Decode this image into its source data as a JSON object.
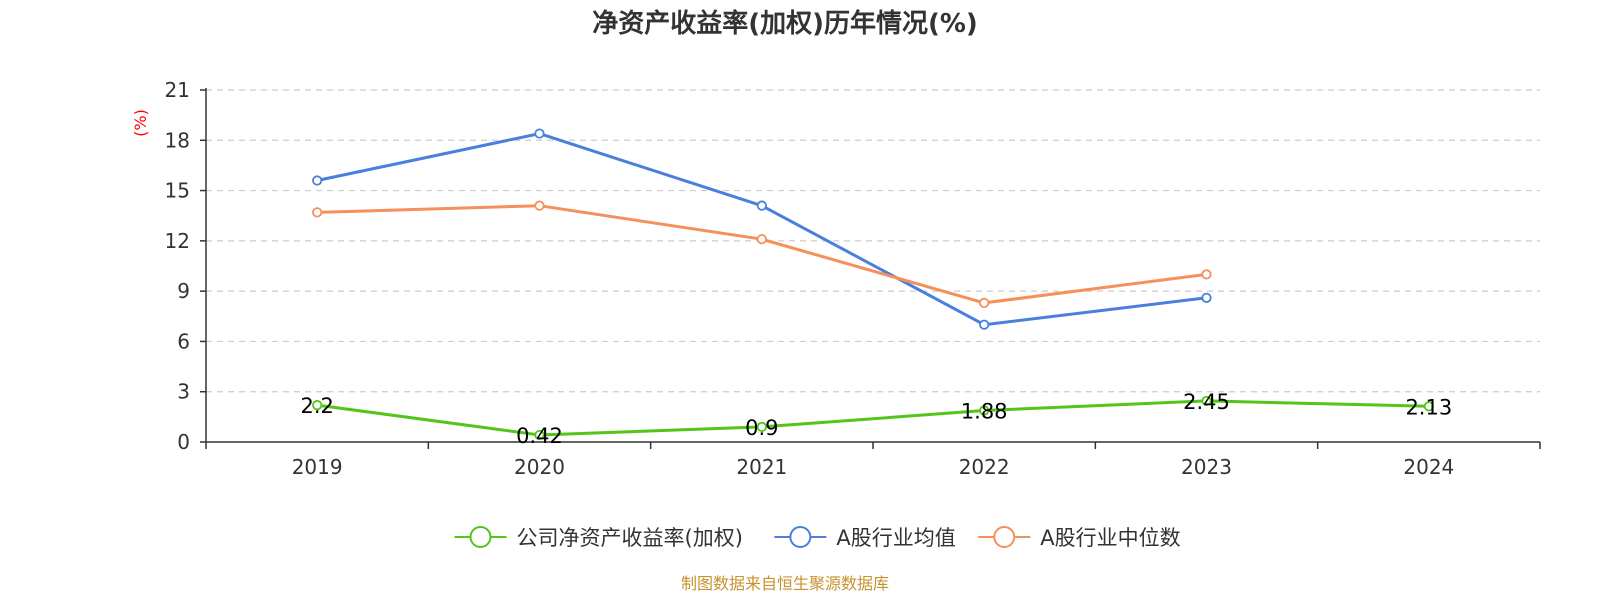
{
  "chart_data": {
    "type": "line",
    "title": "净资产收益率(加权)历年情况(%)",
    "ylabel": "(%)",
    "xlabel": "",
    "categories": [
      "2019",
      "2020",
      "2021",
      "2022",
      "2023",
      "2024"
    ],
    "ylim": [
      0,
      21
    ],
    "yticks": [
      0,
      3,
      6,
      9,
      12,
      15,
      18,
      21
    ],
    "grid": true,
    "legend_position": "bottom-center",
    "series": [
      {
        "name": "公司净资产收益率(加权)",
        "color": "#52c41a",
        "values": [
          2.2,
          0.42,
          0.9,
          1.88,
          2.45,
          2.13
        ],
        "labels": [
          "2.2",
          "0.42",
          "0.9",
          "1.88",
          "2.45",
          "2.13"
        ],
        "show_labels": true
      },
      {
        "name": "A股行业均值",
        "color": "#4a7fdc",
        "values": [
          15.6,
          18.4,
          14.1,
          7.0,
          8.6,
          null
        ],
        "show_labels": false
      },
      {
        "name": "A股行业中位数",
        "color": "#f5905a",
        "values": [
          13.7,
          14.1,
          12.1,
          8.3,
          10.0,
          null
        ],
        "show_labels": false
      }
    ]
  },
  "colors": {
    "ylabel": "#ff0000",
    "source": "#c8922e",
    "grid": "#cccccc",
    "axis": "#333333"
  },
  "source_text": "制图数据来自恒生聚源数据库"
}
